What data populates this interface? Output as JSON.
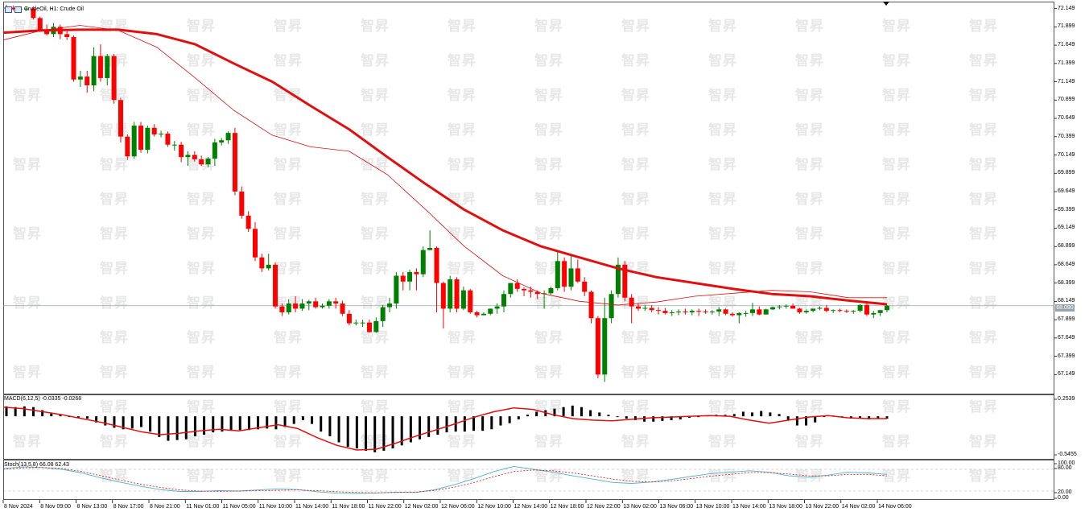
{
  "window": {
    "header": "CrudeOil, H1:  Crude Oil",
    "current_price": "68.090",
    "watermark": "智昇"
  },
  "colors": {
    "bull": "#008000",
    "bear": "#ff0000",
    "ma_slow": "#e01010",
    "ma_fast": "#e01010",
    "macd_hist": "#000000",
    "macd_signal": "#e01010",
    "stoch_main": "#4fb3c8",
    "stoch_signal": "#e01010",
    "grid": "#c8c8c8"
  },
  "chart_data": [
    {
      "type": "candlestick",
      "name": "CrudeOil, H1",
      "ylim": [
        66.9,
        72.2
      ],
      "price_axis": [
        "72.149",
        "71.899",
        "71.649",
        "71.399",
        "71.149",
        "70.899",
        "70.649",
        "70.399",
        "70.149",
        "69.899",
        "69.649",
        "69.399",
        "69.149",
        "68.899",
        "68.649",
        "68.399",
        "68.149",
        "67.899",
        "67.649",
        "67.399",
        "67.149"
      ],
      "time_axis": [
        "8 Nov 2024",
        "8 Nov 09:00",
        "8 Nov 13:00",
        "8 Nov 17:00",
        "8 Nov 21:00",
        "11 Nov 01:00",
        "11 Nov 05:00",
        "11 Nov 10:00",
        "11 Nov 14:00",
        "11 Nov 18:00",
        "11 Nov 22:00",
        "12 Nov 02:00",
        "12 Nov 06:00",
        "12 Nov 10:00",
        "12 Nov 14:00",
        "12 Nov 18:00",
        "12 Nov 22:00",
        "13 Nov 02:00",
        "13 Nov 06:00",
        "13 Nov 10:00",
        "13 Nov 14:00",
        "13 Nov 18:00",
        "13 Nov 22:00",
        "14 Nov 02:00",
        "14 Nov 06:00"
      ],
      "candles": [
        [
          72.16,
          72.2,
          72.1,
          72.16
        ],
        [
          72.16,
          72.19,
          72.12,
          72.14
        ],
        [
          72.14,
          72.18,
          72.1,
          72.15
        ],
        [
          72.15,
          72.17,
          72.12,
          72.15
        ],
        [
          72.15,
          72.18,
          72.0,
          72.02
        ],
        [
          72.02,
          72.04,
          71.83,
          71.85
        ],
        [
          71.85,
          71.93,
          71.78,
          71.8
        ],
        [
          71.8,
          71.95,
          71.76,
          71.9
        ],
        [
          71.9,
          71.93,
          71.73,
          71.8
        ],
        [
          71.8,
          71.86,
          71.72,
          71.76
        ],
        [
          71.76,
          71.78,
          71.15,
          71.18
        ],
        [
          71.18,
          71.3,
          71.08,
          71.22
        ],
        [
          71.22,
          71.3,
          71.0,
          71.1
        ],
        [
          71.1,
          71.62,
          71.02,
          71.5
        ],
        [
          71.5,
          71.66,
          71.15,
          71.2
        ],
        [
          71.2,
          71.53,
          71.1,
          71.5
        ],
        [
          71.5,
          71.53,
          70.85,
          70.9
        ],
        [
          70.9,
          70.93,
          70.32,
          70.4
        ],
        [
          70.4,
          70.43,
          70.08,
          70.13
        ],
        [
          70.13,
          70.6,
          70.1,
          70.55
        ],
        [
          70.55,
          70.6,
          70.18,
          70.22
        ],
        [
          70.22,
          70.55,
          70.17,
          70.52
        ],
        [
          70.52,
          70.57,
          70.4,
          70.43
        ],
        [
          70.43,
          70.48,
          70.39,
          70.44
        ],
        [
          70.44,
          70.47,
          70.26,
          70.29
        ],
        [
          70.29,
          70.34,
          70.21,
          70.29
        ],
        [
          70.29,
          70.33,
          70.05,
          70.12
        ],
        [
          70.12,
          70.2,
          70.0,
          70.15
        ],
        [
          70.15,
          70.2,
          70.06,
          70.09
        ],
        [
          70.09,
          70.14,
          70.0,
          70.02
        ],
        [
          70.02,
          70.12,
          69.98,
          70.1
        ],
        [
          70.1,
          70.37,
          70.0,
          70.32
        ],
        [
          70.32,
          70.38,
          70.28,
          70.35
        ],
        [
          70.35,
          70.47,
          70.3,
          70.45
        ],
        [
          70.45,
          70.52,
          69.6,
          69.65
        ],
        [
          69.65,
          69.72,
          69.28,
          69.32
        ],
        [
          69.32,
          69.38,
          69.1,
          69.14
        ],
        [
          69.14,
          69.23,
          68.7,
          68.75
        ],
        [
          68.75,
          68.8,
          68.55,
          68.6
        ],
        [
          68.6,
          68.8,
          68.57,
          68.65
        ],
        [
          68.65,
          68.68,
          68.05,
          68.08
        ],
        [
          68.08,
          68.12,
          67.95,
          68.0
        ],
        [
          68.0,
          68.18,
          67.97,
          68.12
        ],
        [
          68.12,
          68.22,
          68.0,
          68.05
        ],
        [
          68.05,
          68.18,
          68.02,
          68.12
        ],
        [
          68.12,
          68.17,
          68.03,
          68.15
        ],
        [
          68.15,
          68.2,
          68.05,
          68.07
        ],
        [
          68.07,
          68.12,
          68.05,
          68.09
        ],
        [
          68.09,
          68.18,
          68.05,
          68.15
        ],
        [
          68.15,
          68.2,
          68.05,
          68.12
        ],
        [
          68.12,
          68.16,
          67.95,
          67.98
        ],
        [
          67.98,
          68.03,
          67.82,
          67.85
        ],
        [
          67.85,
          67.9,
          67.82,
          67.86
        ],
        [
          67.86,
          67.9,
          67.8,
          67.86
        ],
        [
          67.86,
          67.9,
          67.72,
          67.73
        ],
        [
          67.73,
          67.93,
          67.72,
          67.88
        ],
        [
          67.88,
          68.1,
          67.8,
          68.07
        ],
        [
          68.07,
          68.2,
          68.0,
          68.12
        ],
        [
          68.12,
          68.55,
          68.05,
          68.5
        ],
        [
          68.5,
          68.55,
          68.3,
          68.42
        ],
        [
          68.42,
          68.58,
          68.3,
          68.55
        ],
        [
          68.55,
          68.6,
          68.3,
          68.52
        ],
        [
          68.52,
          68.9,
          68.48,
          68.85
        ],
        [
          68.85,
          69.12,
          68.85,
          68.88
        ],
        [
          68.88,
          68.9,
          68.0,
          68.4
        ],
        [
          68.4,
          68.42,
          67.78,
          68.05
        ],
        [
          68.05,
          68.5,
          68.0,
          68.45
        ],
        [
          68.45,
          68.48,
          68.0,
          68.05
        ],
        [
          68.05,
          68.35,
          68.03,
          68.3
        ],
        [
          68.3,
          68.32,
          67.98,
          68.0
        ],
        [
          68.0,
          68.02,
          67.93,
          67.96
        ],
        [
          67.96,
          68.0,
          67.96,
          67.98
        ],
        [
          67.98,
          68.05,
          67.96,
          68.05
        ],
        [
          68.05,
          68.12,
          67.98,
          68.08
        ],
        [
          68.08,
          68.3,
          68.0,
          68.25
        ],
        [
          68.25,
          68.4,
          68.2,
          68.4
        ],
        [
          68.4,
          68.45,
          68.28,
          68.32
        ],
        [
          68.32,
          68.34,
          68.22,
          68.3
        ],
        [
          68.3,
          68.35,
          68.2,
          68.28
        ],
        [
          68.28,
          68.3,
          68.18,
          68.25
        ],
        [
          68.25,
          68.3,
          68.05,
          68.26
        ],
        [
          68.26,
          68.35,
          68.24,
          68.33
        ],
        [
          68.33,
          68.85,
          68.3,
          68.7
        ],
        [
          68.7,
          68.75,
          68.28,
          68.35
        ],
        [
          68.35,
          68.8,
          68.3,
          68.6
        ],
        [
          68.6,
          68.72,
          68.4,
          68.42
        ],
        [
          68.42,
          68.48,
          68.22,
          68.28
        ],
        [
          68.28,
          68.3,
          67.85,
          67.92
        ],
        [
          67.92,
          67.95,
          67.1,
          67.15
        ],
        [
          67.15,
          68.2,
          67.05,
          67.92
        ],
        [
          67.92,
          68.3,
          67.85,
          68.25
        ],
        [
          68.25,
          68.75,
          68.2,
          68.65
        ],
        [
          68.65,
          68.7,
          68.15,
          68.2
        ],
        [
          68.2,
          68.25,
          67.85,
          68.08
        ],
        [
          68.08,
          68.12,
          68.02,
          68.05
        ],
        [
          68.05,
          68.1,
          68.02,
          68.06
        ],
        [
          68.06,
          68.1,
          68.0,
          68.03
        ],
        [
          68.03,
          68.07,
          67.97,
          68.02
        ],
        [
          68.02,
          68.06,
          67.97,
          67.99
        ],
        [
          67.99,
          68.03,
          67.95,
          68.0
        ],
        [
          68.0,
          68.04,
          67.96,
          68.01
        ],
        [
          68.01,
          68.05,
          67.97,
          68.0
        ],
        [
          68.0,
          68.04,
          67.96,
          68.02
        ],
        [
          68.02,
          68.05,
          67.95,
          68.01
        ],
        [
          68.01,
          68.04,
          67.98,
          68.0
        ],
        [
          68.0,
          68.03,
          67.97,
          68.01
        ],
        [
          68.01,
          68.07,
          67.95,
          68.04
        ],
        [
          68.04,
          68.05,
          67.96,
          67.98
        ],
        [
          67.98,
          68.0,
          67.94,
          67.96
        ],
        [
          67.96,
          68.0,
          67.85,
          67.99
        ],
        [
          67.99,
          68.02,
          67.94,
          67.99
        ],
        [
          67.99,
          68.13,
          67.95,
          68.04
        ],
        [
          68.04,
          68.08,
          67.96,
          67.97
        ],
        [
          67.97,
          68.05,
          67.97,
          68.04
        ],
        [
          68.04,
          68.08,
          68.03,
          68.07
        ],
        [
          68.07,
          68.1,
          68.04,
          68.08
        ],
        [
          68.08,
          68.11,
          68.05,
          68.09
        ],
        [
          68.09,
          68.12,
          68.05,
          68.05
        ],
        [
          68.05,
          68.06,
          67.98,
          68.0
        ],
        [
          68.0,
          68.04,
          67.98,
          68.02
        ],
        [
          68.02,
          68.05,
          68.0,
          68.05
        ],
        [
          68.05,
          68.08,
          68.03,
          68.06
        ],
        [
          68.06,
          68.1,
          68.0,
          68.02
        ],
        [
          68.02,
          68.04,
          67.99,
          68.03
        ],
        [
          68.03,
          68.05,
          68.0,
          68.02
        ],
        [
          68.02,
          68.04,
          67.99,
          68.01
        ],
        [
          68.01,
          68.03,
          67.98,
          68.02
        ],
        [
          68.02,
          68.11,
          68.0,
          68.1
        ],
        [
          68.1,
          68.12,
          67.95,
          67.97
        ],
        [
          67.97,
          68.02,
          67.92,
          67.99
        ],
        [
          67.99,
          68.03,
          67.95,
          68.03
        ],
        [
          68.03,
          68.1,
          68.0,
          68.09
        ]
      ],
      "ma_slow": [
        71.82,
        71.85,
        71.86,
        71.86,
        71.8,
        71.66,
        71.4,
        71.15,
        70.82,
        70.5,
        70.12,
        69.75,
        69.4,
        69.12,
        68.9,
        68.75,
        68.6,
        68.48,
        68.4,
        68.32,
        68.25,
        68.22,
        68.16,
        68.11
      ],
      "ma_fast": [
        71.72,
        71.85,
        71.92,
        71.85,
        71.62,
        71.2,
        70.76,
        70.42,
        70.26,
        70.2,
        69.88,
        69.4,
        68.9,
        68.5,
        68.26,
        68.15,
        68.1,
        68.14,
        68.22,
        68.26,
        68.3,
        68.28,
        68.2,
        68.2
      ]
    },
    {
      "type": "bar",
      "name": "MACD(6,12,5) -0.0335 -0.0268",
      "ylim": [
        -0.5455,
        0.2539
      ],
      "axis_labels": [
        "0.2539",
        "-0.5455"
      ],
      "histogram": [
        0.13,
        0.12,
        0.13,
        0.12,
        0.08,
        0.04,
        0.02,
        0.0,
        -0.02,
        -0.03,
        -0.08,
        -0.12,
        -0.15,
        -0.17,
        -0.16,
        -0.14,
        -0.2,
        -0.27,
        -0.32,
        -0.31,
        -0.3,
        -0.26,
        -0.24,
        -0.21,
        -0.2,
        -0.19,
        -0.18,
        -0.18,
        -0.17,
        -0.16,
        -0.17,
        -0.14,
        -0.1,
        -0.05,
        -0.1,
        -0.2,
        -0.26,
        -0.34,
        -0.4,
        -0.42,
        -0.45,
        -0.47,
        -0.45,
        -0.42,
        -0.38,
        -0.34,
        -0.3,
        -0.27,
        -0.24,
        -0.21,
        -0.2,
        -0.2,
        -0.19,
        -0.19,
        -0.17,
        -0.12,
        -0.09,
        -0.04,
        0.02,
        0.06,
        0.08,
        0.1,
        0.12,
        0.14,
        0.12,
        0.08,
        0.05,
        0.02,
        0.0,
        -0.03,
        -0.05,
        -0.07,
        -0.07,
        -0.06,
        -0.05,
        -0.04,
        -0.02,
        0.0,
        0.01,
        0.02,
        0.02,
        0.03,
        0.06,
        0.05,
        0.07,
        0.05,
        0.03,
        -0.05,
        -0.12,
        -0.12,
        -0.08,
        -0.01,
        0.01,
        -0.01,
        -0.03,
        -0.03,
        -0.04,
        -0.03,
        -0.03
      ],
      "signal": [
        0.12,
        0.1,
        0.06,
        0.02,
        -0.03,
        -0.08,
        -0.14,
        -0.2,
        -0.24,
        -0.22,
        -0.19,
        -0.17,
        -0.19,
        -0.15,
        -0.11,
        -0.16,
        -0.28,
        -0.38,
        -0.44,
        -0.43,
        -0.35,
        -0.26,
        -0.18,
        -0.1,
        -0.01,
        0.06,
        0.11,
        0.09,
        0.02,
        -0.03,
        -0.05,
        -0.06,
        -0.04,
        -0.02,
        -0.01,
        0.0,
        0.01,
        0.0,
        -0.05,
        -0.09,
        -0.05,
        -0.01,
        0.01,
        -0.02,
        -0.03,
        -0.03
      ]
    },
    {
      "type": "line",
      "name": "Stoch(13,5,8) 66.08 62.43",
      "ylim": [
        0,
        100
      ],
      "axis_labels": [
        "100.00",
        "80.00",
        "20.00",
        "0.00"
      ],
      "main": [
        82,
        87,
        85,
        80,
        70,
        56,
        44,
        33,
        24,
        19,
        19,
        21,
        20,
        23,
        26,
        24,
        18,
        14,
        13,
        15,
        17,
        16,
        24,
        38,
        55,
        74,
        88,
        80,
        72,
        62,
        53,
        44,
        41,
        45,
        52,
        60,
        68,
        72,
        76,
        72,
        62,
        58,
        64,
        72,
        70,
        66
      ],
      "signal": [
        80,
        84,
        85,
        82,
        74,
        62,
        50,
        39,
        30,
        23,
        20,
        19,
        20,
        21,
        22,
        23,
        21,
        18,
        16,
        15,
        16,
        17,
        22,
        31,
        44,
        60,
        74,
        78,
        76,
        70,
        62,
        53,
        47,
        45,
        48,
        54,
        61,
        66,
        71,
        71,
        67,
        62,
        62,
        66,
        66,
        62
      ]
    }
  ]
}
